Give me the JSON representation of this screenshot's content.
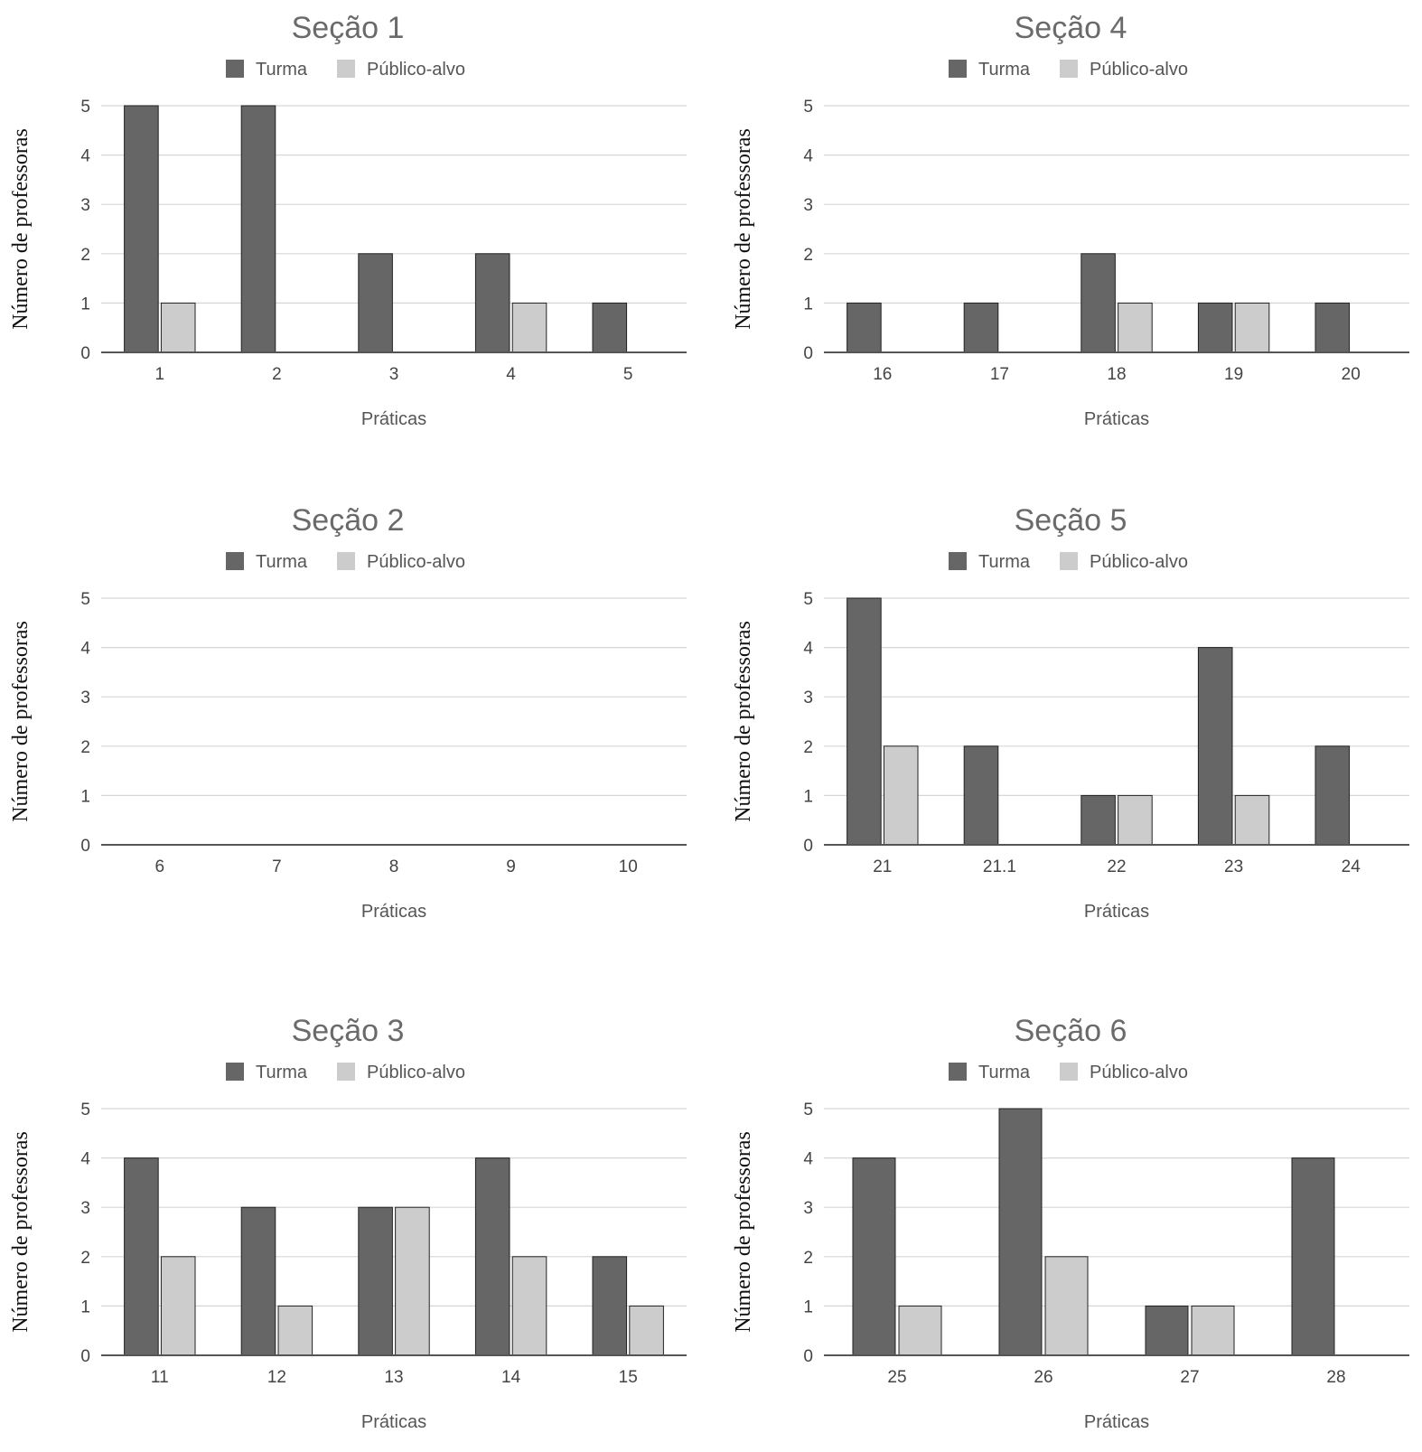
{
  "chart_data": [
    {
      "type": "bar",
      "title": "Seção 1",
      "xlabel": "Práticas",
      "ylabel": "Número de professoras",
      "ylim": [
        0,
        5
      ],
      "yticks": [
        "0",
        "1",
        "2",
        "3",
        "4",
        "5"
      ],
      "grid": true,
      "legend": "top",
      "categories": [
        "1",
        "2",
        "3",
        "4",
        "5"
      ],
      "series": [
        {
          "name": "Turma",
          "color": "#666666",
          "values": [
            5,
            5,
            2,
            2,
            1
          ]
        },
        {
          "name": "Público-alvo",
          "color": "#cccccc",
          "values": [
            1,
            0,
            0,
            1,
            0
          ]
        }
      ]
    },
    {
      "type": "bar",
      "title": "Seção 4",
      "xlabel": "Práticas",
      "ylabel": "Número de professoras",
      "ylim": [
        0,
        5
      ],
      "yticks": [
        "0",
        "1",
        "2",
        "3",
        "4",
        "5"
      ],
      "grid": true,
      "legend": "top",
      "categories": [
        "16",
        "17",
        "18",
        "19",
        "20"
      ],
      "series": [
        {
          "name": "Turma",
          "color": "#666666",
          "values": [
            1,
            1,
            2,
            1,
            1
          ]
        },
        {
          "name": "Público-alvo",
          "color": "#cccccc",
          "values": [
            0,
            0,
            1,
            1,
            0
          ]
        }
      ]
    },
    {
      "type": "bar",
      "title": "Seção 2",
      "xlabel": "Práticas",
      "ylabel": "Número de professoras",
      "ylim": [
        0,
        5
      ],
      "yticks": [
        "0",
        "1",
        "2",
        "3",
        "4",
        "5"
      ],
      "grid": true,
      "legend": "top",
      "categories": [
        "6",
        "7",
        "8",
        "9",
        "10"
      ],
      "series": [
        {
          "name": "Turma",
          "color": "#666666",
          "values": [
            0,
            0,
            0,
            0,
            0
          ]
        },
        {
          "name": "Público-alvo",
          "color": "#cccccc",
          "values": [
            0,
            0,
            0,
            0,
            0
          ]
        }
      ]
    },
    {
      "type": "bar",
      "title": "Seção 5",
      "xlabel": "Práticas",
      "ylabel": "Número de professoras",
      "ylim": [
        0,
        5
      ],
      "yticks": [
        "0",
        "1",
        "2",
        "3",
        "4",
        "5"
      ],
      "grid": true,
      "legend": "top",
      "categories": [
        "21",
        "21.1",
        "22",
        "23",
        "24"
      ],
      "series": [
        {
          "name": "Turma",
          "color": "#666666",
          "values": [
            5,
            2,
            1,
            4,
            2
          ]
        },
        {
          "name": "Público-alvo",
          "color": "#cccccc",
          "values": [
            2,
            0,
            1,
            1,
            0
          ]
        }
      ]
    },
    {
      "type": "bar",
      "title": "Seção 3",
      "xlabel": "Práticas",
      "ylabel": "Número de professoras",
      "ylim": [
        0,
        5
      ],
      "yticks": [
        "0",
        "1",
        "2",
        "3",
        "4",
        "5"
      ],
      "grid": true,
      "legend": "top",
      "categories": [
        "11",
        "12",
        "13",
        "14",
        "15"
      ],
      "series": [
        {
          "name": "Turma",
          "color": "#666666",
          "values": [
            4,
            3,
            3,
            4,
            2
          ]
        },
        {
          "name": "Público-alvo",
          "color": "#cccccc",
          "values": [
            2,
            1,
            3,
            2,
            1
          ]
        }
      ]
    },
    {
      "type": "bar",
      "title": "Seção 6",
      "xlabel": "Práticas",
      "ylabel": "Número de professoras",
      "ylim": [
        0,
        5
      ],
      "yticks": [
        "0",
        "1",
        "2",
        "3",
        "4",
        "5"
      ],
      "grid": true,
      "legend": "top",
      "categories": [
        "25",
        "26",
        "27",
        "28"
      ],
      "series": [
        {
          "name": "Turma",
          "color": "#666666",
          "values": [
            4,
            5,
            1,
            4
          ]
        },
        {
          "name": "Público-alvo",
          "color": "#cccccc",
          "values": [
            1,
            2,
            1,
            0
          ]
        }
      ]
    }
  ]
}
